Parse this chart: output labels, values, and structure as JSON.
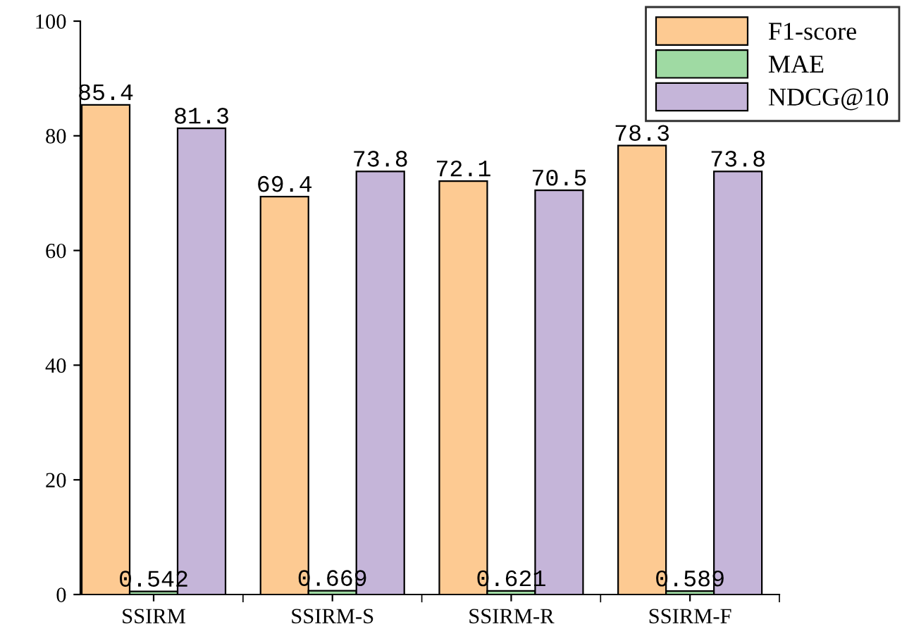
{
  "chart_data": {
    "type": "bar",
    "categories": [
      "SSIRM",
      "SSIRM-S",
      "SSIRM-R",
      "SSIRM-F"
    ],
    "series": [
      {
        "name": "F1-score",
        "color": "#fdca92",
        "values": [
          85.4,
          69.4,
          72.1,
          78.3
        ]
      },
      {
        "name": "MAE",
        "color": "#9fdaa3",
        "values": [
          0.542,
          0.669,
          0.621,
          0.589
        ]
      },
      {
        "name": "NDCG@10",
        "color": "#c5b5d9",
        "values": [
          81.3,
          73.8,
          70.5,
          73.8
        ]
      }
    ],
    "ylim": [
      0,
      100
    ],
    "yticks": [
      0,
      20,
      40,
      60,
      80,
      100
    ],
    "data_labels": true,
    "legend": "top right",
    "grid": false
  }
}
